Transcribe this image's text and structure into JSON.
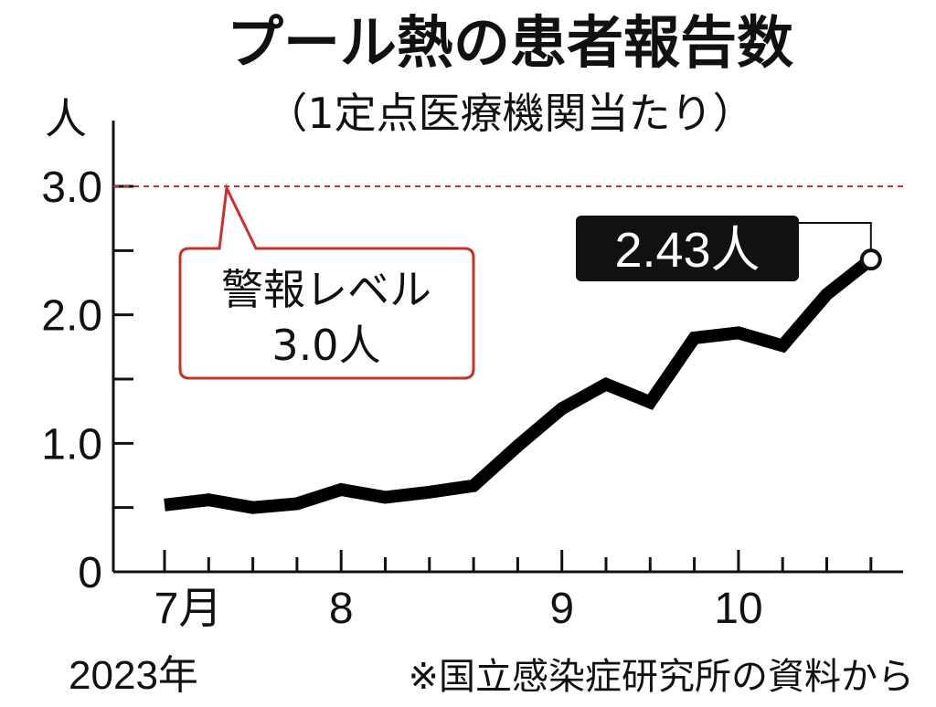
{
  "title": "プール熱の患者報告数",
  "subtitle": "（1定点医療機関当たり）",
  "chart_data": {
    "type": "line",
    "ylabel": "人",
    "ylim": [
      0,
      3.2
    ],
    "yticks": [
      {
        "value": 0,
        "label": "0"
      },
      {
        "value": 1.0,
        "label": "1.0"
      },
      {
        "value": 2.0,
        "label": "2.0"
      },
      {
        "value": 3.0,
        "label": "3.0"
      }
    ],
    "xlim": [
      0,
      16.4
    ],
    "xtick_count": 17,
    "x_month_labels": [
      {
        "x": 0,
        "label": "7月"
      },
      {
        "x": 4,
        "label": "8"
      },
      {
        "x": 9,
        "label": "9"
      },
      {
        "x": 13,
        "label": "10"
      }
    ],
    "year_label": "2023年",
    "series": [
      {
        "x": [
          0,
          1,
          2,
          3,
          4,
          5,
          6,
          7,
          8,
          9,
          10,
          11,
          12,
          13,
          14,
          15,
          16
        ],
        "values": [
          0.52,
          0.56,
          0.5,
          0.53,
          0.64,
          0.58,
          0.62,
          0.67,
          0.98,
          1.27,
          1.46,
          1.32,
          1.82,
          1.86,
          1.76,
          2.16,
          2.43
        ]
      }
    ],
    "line_color": "#000000",
    "reference_line": {
      "value": 3.0,
      "color": "#c8302a",
      "callout_line1": "警報レベル",
      "callout_line2": "3.0人"
    },
    "latest_label": "2.43人"
  },
  "source_note": "※国立感染症研究所の資料から"
}
